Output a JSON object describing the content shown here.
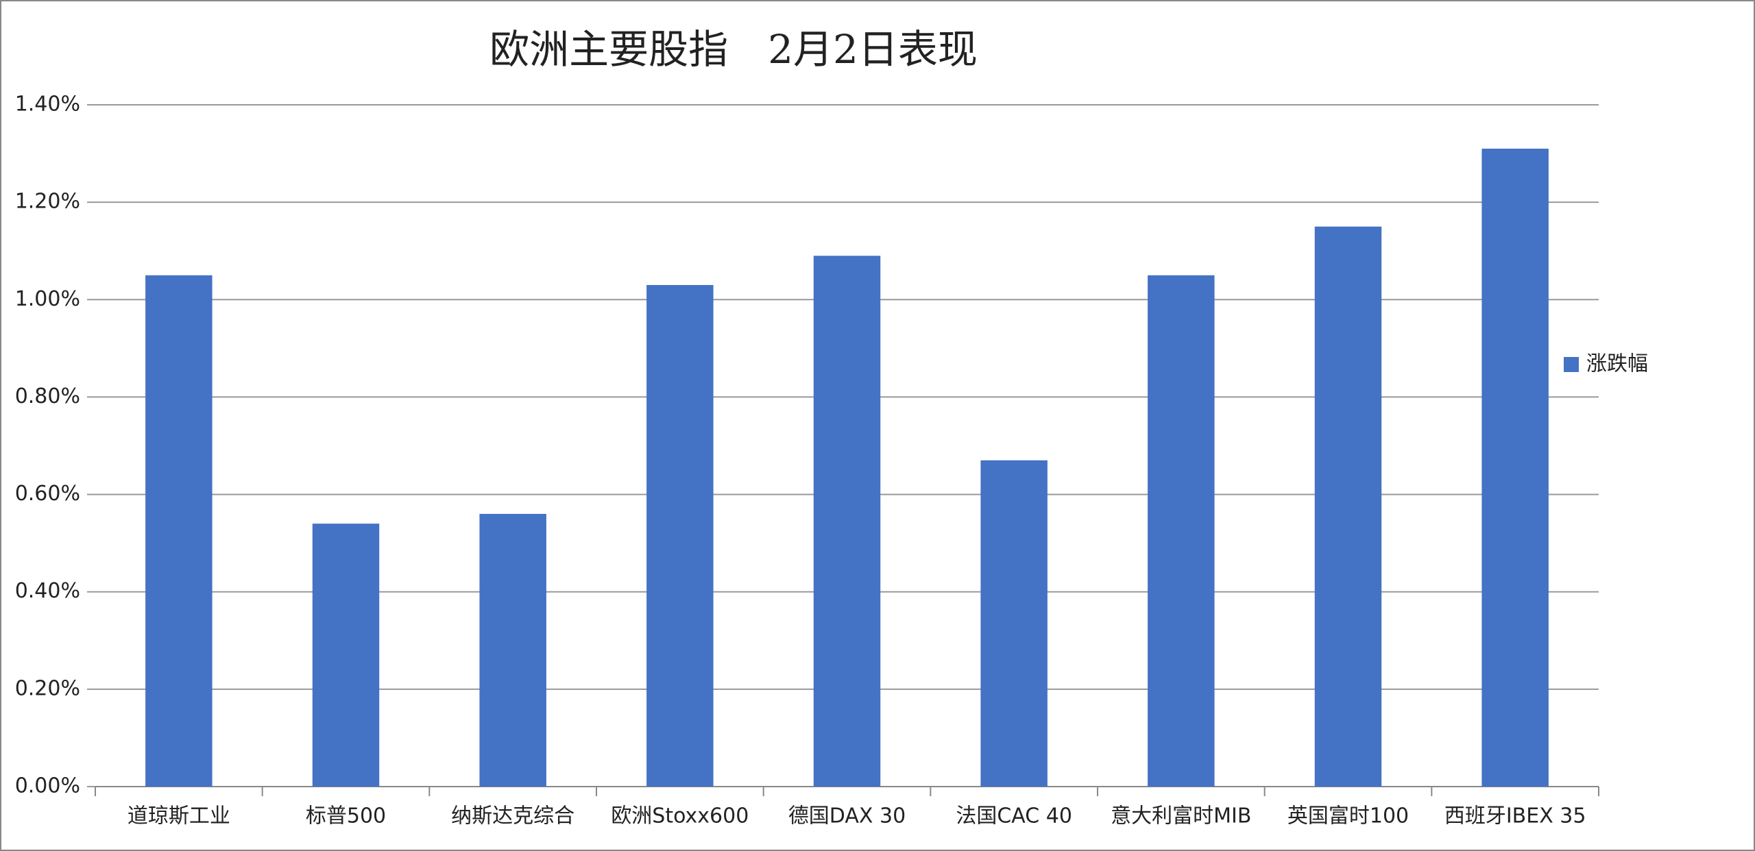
{
  "chart_data": {
    "type": "bar",
    "title": "欧洲主要股指　2月2日表现",
    "categories": [
      "道琼斯工业",
      "标普500",
      "纳斯达克综合",
      "欧洲Stoxx600",
      "德国DAX 30",
      "法国CAC 40",
      "意大利富时MIB",
      "英国富时100",
      "西班牙IBEX 35"
    ],
    "series": [
      {
        "name": "涨跌幅",
        "color": "#4472c4",
        "values": [
          1.05,
          0.54,
          0.56,
          1.03,
          1.09,
          0.67,
          1.05,
          1.15,
          1.31
        ]
      }
    ],
    "ylim": [
      0,
      1.4
    ],
    "yticks": [
      {
        "value": 0,
        "label": "0.00%"
      },
      {
        "value": 0.2,
        "label": "0.20%"
      },
      {
        "value": 0.4,
        "label": "0.40%"
      },
      {
        "value": 0.6,
        "label": "0.60%"
      },
      {
        "value": 0.8,
        "label": "0.80%"
      },
      {
        "value": 1.0,
        "label": "1.00%"
      },
      {
        "value": 1.2,
        "label": "1.20%"
      },
      {
        "value": 1.4,
        "label": "1.40%"
      }
    ],
    "grid": true,
    "legend": "right"
  }
}
